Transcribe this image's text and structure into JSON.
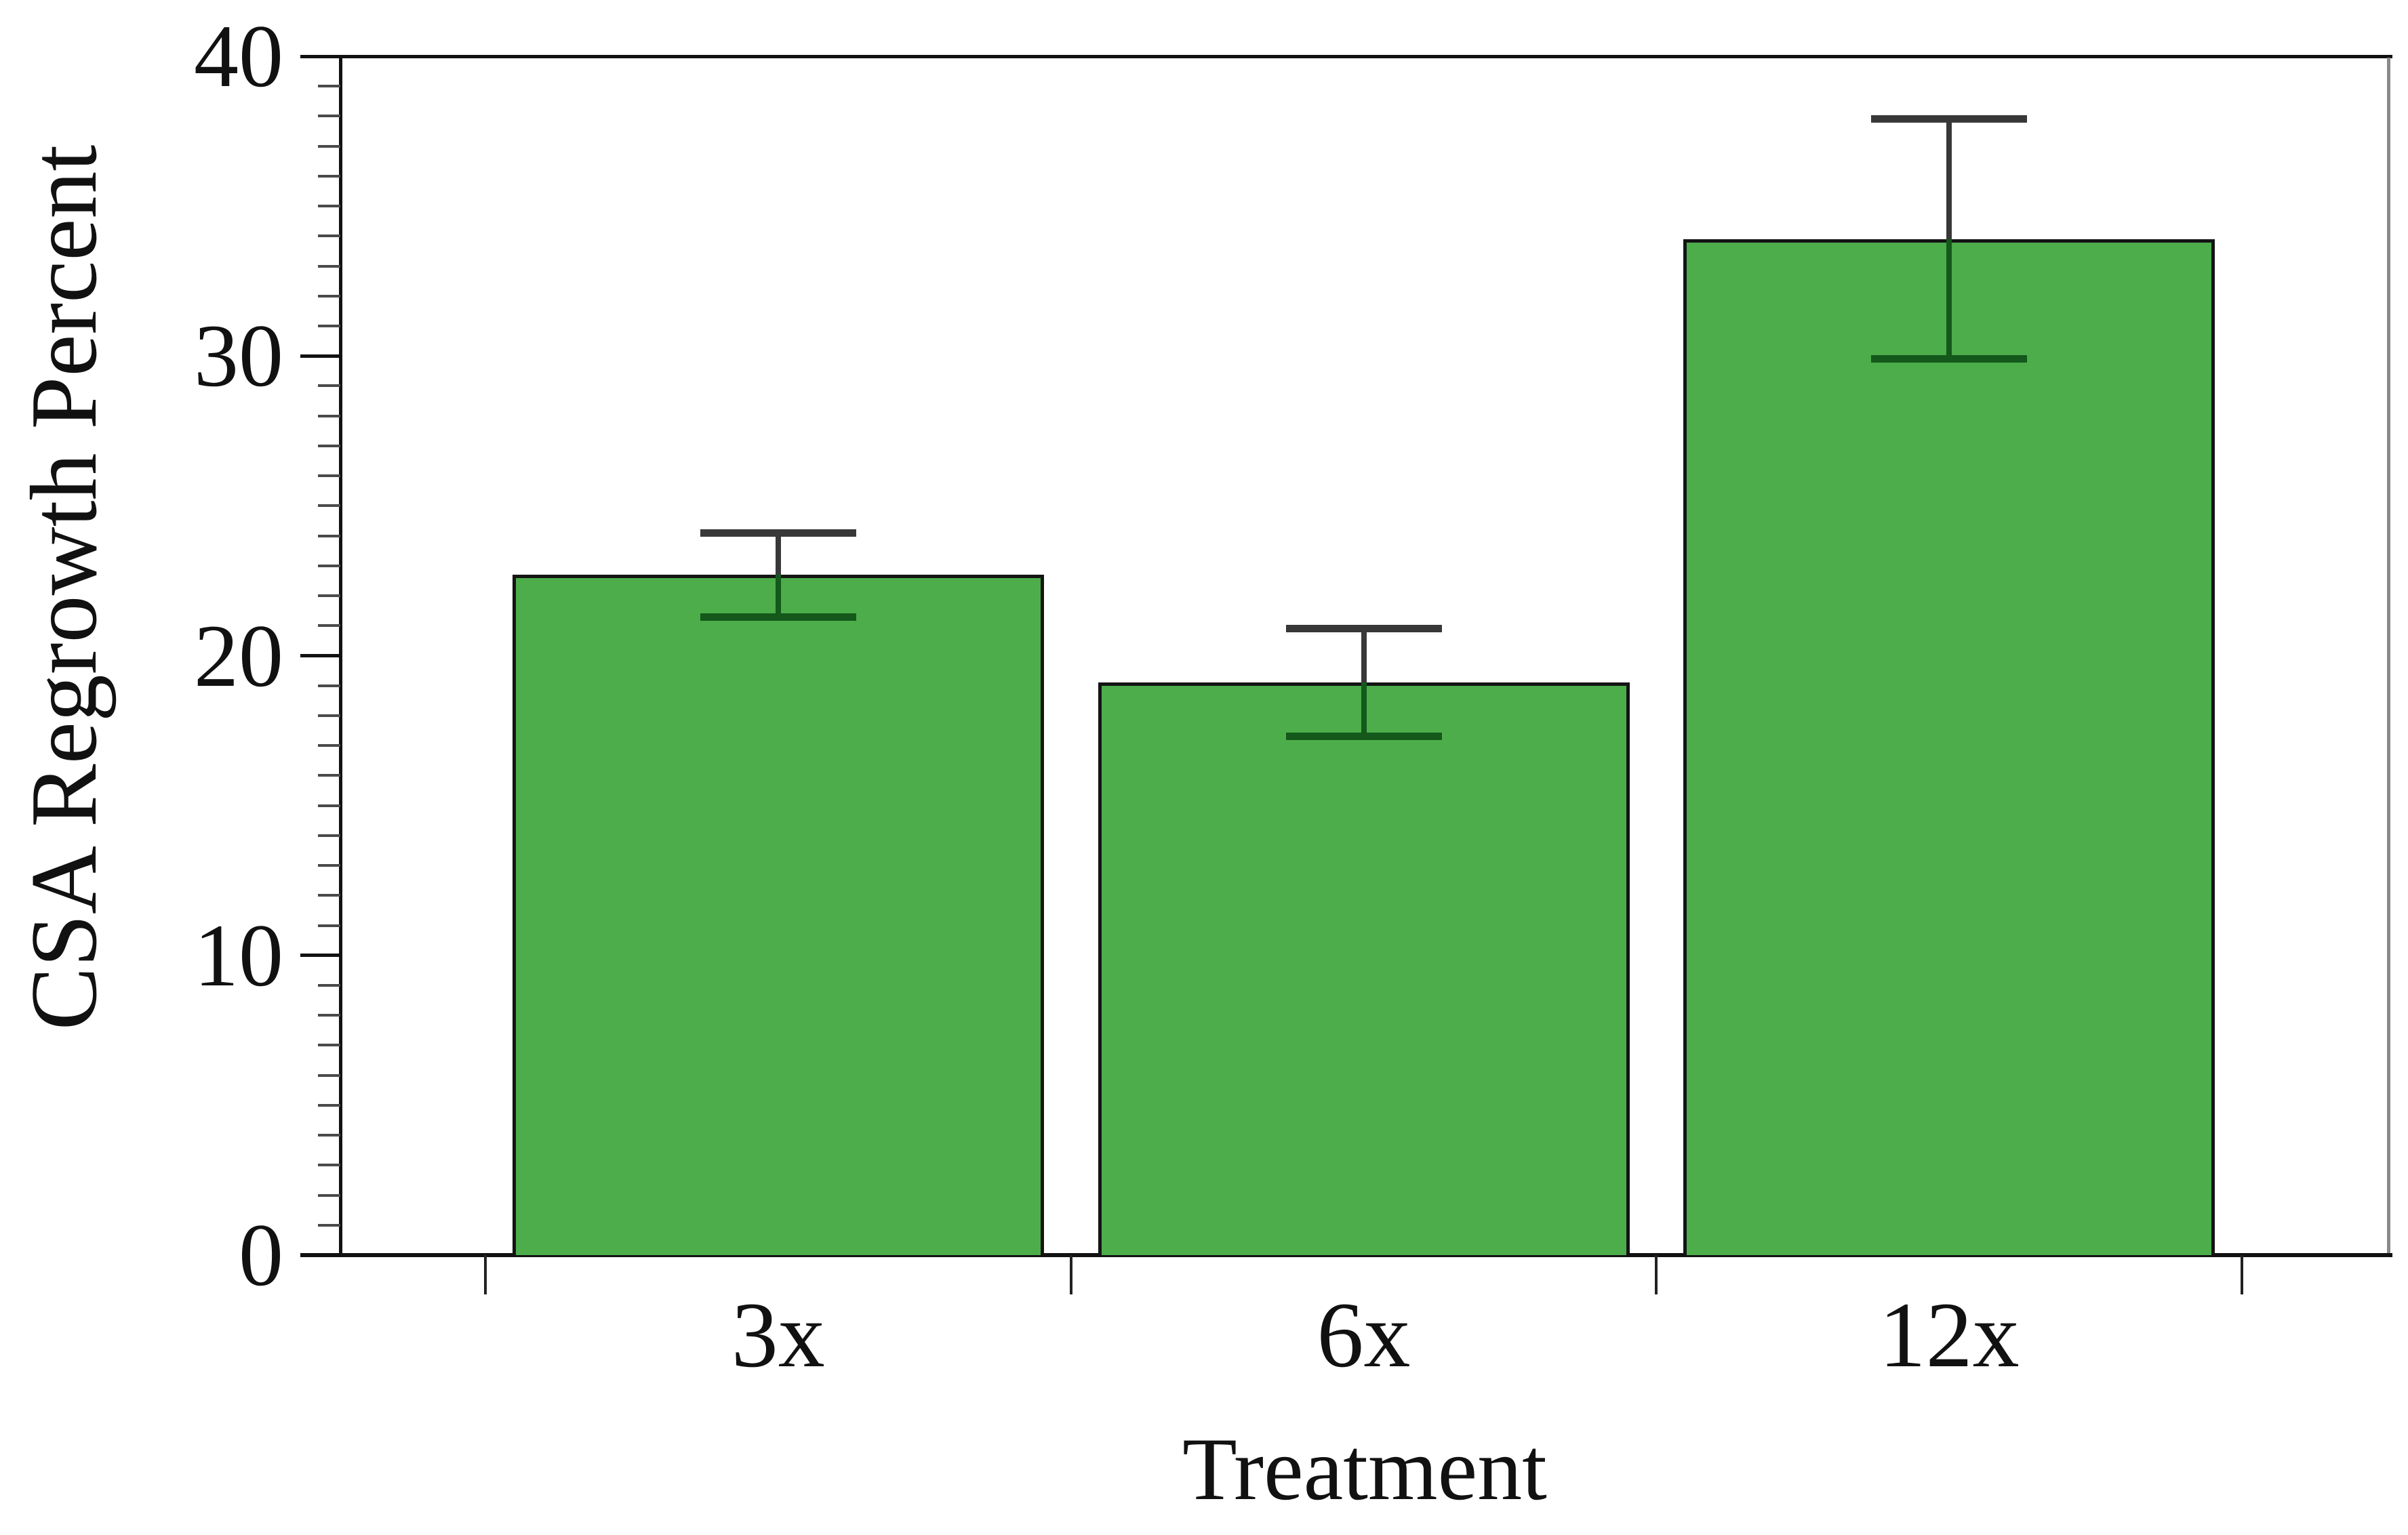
{
  "chart_data": {
    "type": "bar",
    "title": "",
    "categories": [
      "3x",
      "6x",
      "12x"
    ],
    "values": [
      22.7,
      19.1,
      33.9
    ],
    "error_low": [
      21.3,
      17.3,
      29.9
    ],
    "error_high": [
      24.1,
      20.9,
      37.9
    ],
    "xlabel": "Treatment",
    "ylabel": "CSA Regrowth Percent",
    "ylim": [
      0,
      40
    ],
    "y_major_ticks": [
      0,
      10,
      20,
      30,
      40
    ],
    "y_minor_tick_interval": 1,
    "x_ticks_between_categories": true,
    "grid": false,
    "legend": false,
    "bar_fill_color": "#4CAD4A",
    "bar_edge_color": "#141414",
    "error_bar_color": "#383838",
    "error_bar_inside_bar_color": "#14581b",
    "axis_color": "#111111",
    "right_frame_color": "#8a8a8a",
    "background_color": "#ffffff"
  }
}
